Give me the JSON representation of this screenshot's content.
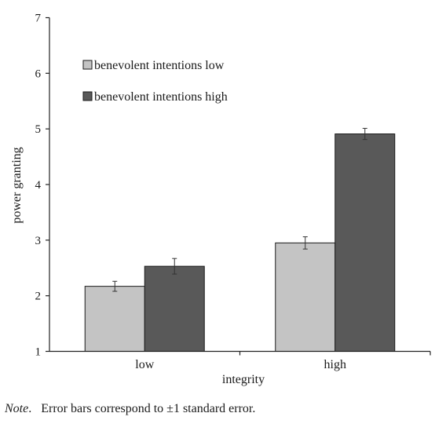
{
  "chart_data": {
    "type": "bar",
    "categories": [
      "low",
      "high"
    ],
    "series": [
      {
        "name": "benevolent intentions low",
        "values": [
          2.17,
          2.95
        ],
        "error": [
          0.09,
          0.11
        ],
        "color": "#c4c4c4"
      },
      {
        "name": "benevolent intentions high",
        "values": [
          2.53,
          4.91
        ],
        "error": [
          0.14,
          0.1
        ],
        "color": "#595959"
      }
    ],
    "xlabel": "integrity",
    "ylabel": "power granting",
    "ylim": [
      1,
      7
    ],
    "yticks": [
      "1",
      "2",
      "3",
      "4",
      "5",
      "6",
      "7"
    ],
    "grid": false,
    "legend_position": "top-left"
  },
  "note": {
    "label": "Note",
    "text": "Error bars correspond to ±1 standard error."
  }
}
